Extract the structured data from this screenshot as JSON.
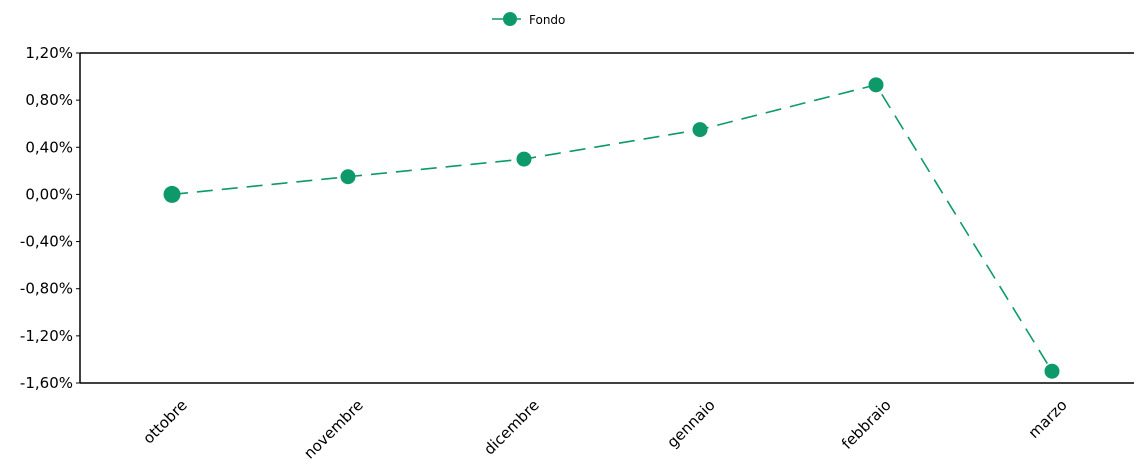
{
  "chart_data": {
    "type": "line",
    "categories": [
      "ottobre",
      "novembre",
      "dicembre",
      "gennaio",
      "febbraio",
      "marzo"
    ],
    "series": [
      {
        "name": "Fondo",
        "values": [
          0.0,
          0.15,
          0.3,
          0.55,
          0.93,
          -1.5
        ],
        "color": "#0d9a68",
        "line_style": "dashed",
        "marker": "circle"
      }
    ],
    "y_ticks": [
      1.2,
      0.8,
      0.4,
      0.0,
      -0.4,
      -0.8,
      -1.2,
      -1.6
    ],
    "y_tick_labels": [
      "1,20%",
      "0,80%",
      "0,40%",
      "0,00%",
      "-0,40%",
      "-0,80%",
      "-1,20%",
      "-1,60%"
    ],
    "ylim": [
      -1.6,
      1.2
    ],
    "grid": false,
    "legend_position": "top-center",
    "x_tick_rotation": "diagonal"
  }
}
